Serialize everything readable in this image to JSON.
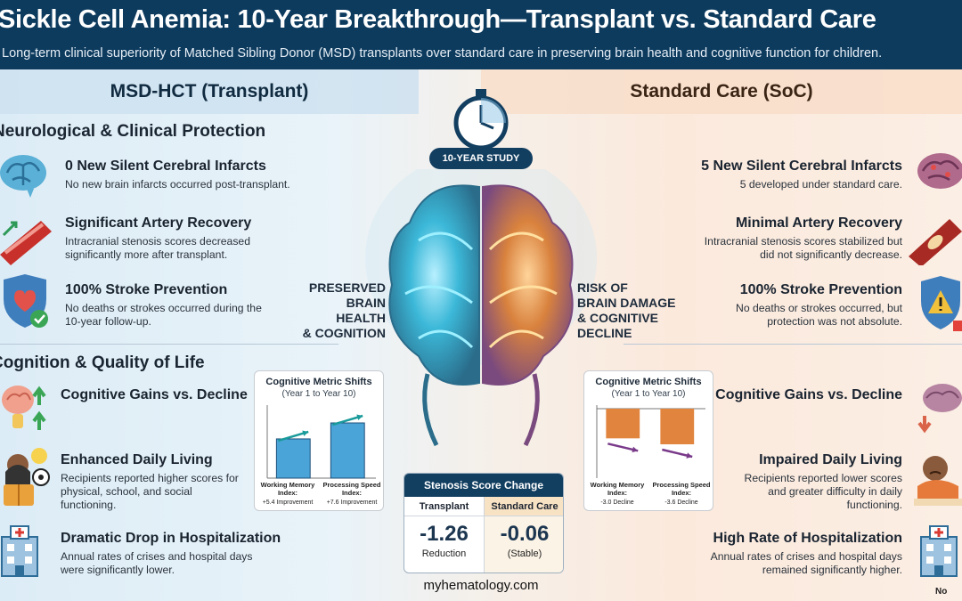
{
  "header": {
    "title": "Sickle Cell Anemia: 10-Year Breakthrough—Transplant vs. Standard Care",
    "subtitle": "Long-term clinical superiority of Matched Sibling Donor (MSD) transplants over standard care in preserving brain health and cognitive function for children."
  },
  "columns": {
    "left_title": "MSD-HCT (Transplant)",
    "right_title": "Standard Care (SoC)"
  },
  "center": {
    "study_badge": "10-YEAR STUDY",
    "left_brain_label": [
      "PRESERVED",
      "BRAIN HEALTH",
      "& COGNITION"
    ],
    "right_brain_label": [
      "RISK OF",
      "BRAIN DAMAGE",
      "& COGNITIVE",
      "DECLINE"
    ]
  },
  "left": {
    "section1_title": "Neurological & Clinical Protection",
    "items1": [
      {
        "heading": "0 New Silent Cerebral Infarcts",
        "text": "No new brain infarcts occurred post-transplant.",
        "icon": "brain-icon"
      },
      {
        "heading": "Significant Artery Recovery",
        "text": "Intracranial stenosis scores decreased significantly more after transplant.",
        "icon": "artery-icon"
      },
      {
        "heading": "100% Stroke Prevention",
        "text": "No deaths or strokes occurred during the 10-year follow-up.",
        "icon": "shield-heart-icon"
      }
    ],
    "section2_title": "Cognition & Quality of Life",
    "items2": [
      {
        "heading": "Cognitive Gains vs. Decline",
        "text": "",
        "icon": "brain-arrows-up-icon"
      },
      {
        "heading": "Enhanced Daily Living",
        "text": "Recipients reported higher scores for physical, school, and social functioning.",
        "icon": "child-reading-icon"
      },
      {
        "heading": "Dramatic Drop in Hospitalization",
        "text": "Annual rates of crises and hospital days were significantly lower.",
        "icon": "hospital-icon"
      }
    ]
  },
  "right": {
    "items1": [
      {
        "heading": "5 New Silent Cerebral Infarcts",
        "text": "5 developed under standard care.",
        "icon": "damaged-brain-icon"
      },
      {
        "heading": "Minimal Artery Recovery",
        "text": "Intracranial stenosis scores stabilized but did not significantly decrease.",
        "icon": "blocked-artery-icon"
      },
      {
        "heading": "100% Stroke Prevention",
        "text": "No deaths or strokes occurred, but protection was not absolute.",
        "icon": "shield-warning-icon"
      }
    ],
    "items2": [
      {
        "heading": "Cognitive Gains vs. Decline",
        "text": "",
        "icon": "brain-arrow-down-icon"
      },
      {
        "heading": "Impaired Daily Living",
        "text": "Recipients reported lower scores and greater difficulty in daily functioning.",
        "icon": "sad-child-icon"
      },
      {
        "heading": "High Rate of Hospitalization",
        "text": "Annual rates of crises and hospital days remained significantly higher.",
        "icon": "hospital-icon"
      }
    ]
  },
  "charts": {
    "transplant": {
      "title": "Cognitive Metric Shifts",
      "subtitle": "(Year 1 to Year 10)",
      "bars": [
        {
          "label": "Working Memory Index:",
          "value_text": "+5.4 Improvement",
          "value": 5.4
        },
        {
          "label": "Processing Speed Index:",
          "value_text": "+7.6 Improvement",
          "value": 7.6
        }
      ]
    },
    "standard": {
      "title": "Cognitive Metric Shifts",
      "subtitle": "(Year 1 to Year 10)",
      "bars": [
        {
          "label": "Working Memory Index:",
          "value_text": "-3.0 Decline",
          "value": -3.0
        },
        {
          "label": "Processing Speed Index:",
          "value_text": "-3.6 Decline",
          "value": -3.6
        }
      ]
    }
  },
  "stenosis": {
    "title": "Stenosis Score Change",
    "transplant_label": "Transplant",
    "standard_label": "Standard Care",
    "transplant_value": "-1.26",
    "transplant_note": "Reduction",
    "standard_value": "-0.06",
    "standard_note": "(Stable)"
  },
  "footer": {
    "url": "myhematology.com",
    "corner": "No"
  },
  "colors": {
    "header_bg": "#0d3b5e",
    "transplant_accent": "#2e8ab8",
    "standard_accent": "#e0803a"
  }
}
